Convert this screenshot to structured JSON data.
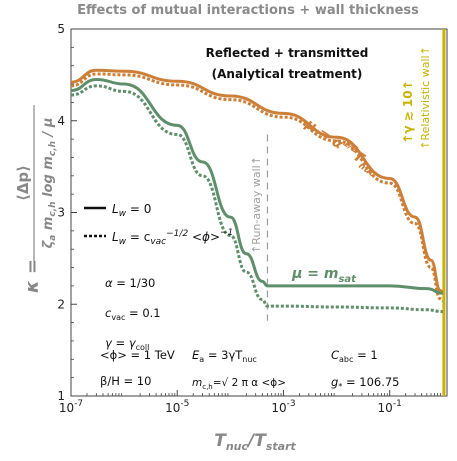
{
  "chart_data": {
    "type": "line",
    "title": "Effects of mutual interactions + wall thickness",
    "xlabel": "T_nuc/T_start",
    "ylabel": "κ = ⟨Δp⟩ / (ζ_a m_c,h log m_c,h / μ)",
    "x_scale": "log",
    "xlim": [
      1e-07,
      1.2
    ],
    "ylim": [
      1,
      5
    ],
    "x_ticks": [
      1e-07,
      1e-05,
      0.001,
      0.1
    ],
    "y_ticks": [
      1,
      2,
      3,
      4,
      5
    ],
    "grid": false,
    "colors": {
      "orange": "#cd7f38",
      "green": "#5f8f6a",
      "wall": "#c9b200",
      "runaway": "#a0a0a0"
    },
    "series": [
      {
        "name": "μ = α^(1/2) T_nuc",
        "style": "solid",
        "color": "#cd7f38",
        "x": [
          1e-07,
          3e-07,
          1e-06,
          1e-05,
          0.0001,
          0.001,
          0.01,
          0.1,
          0.3,
          0.6,
          0.9,
          1.0
        ],
        "y": [
          4.42,
          4.55,
          4.54,
          4.43,
          4.27,
          4.08,
          3.82,
          3.37,
          2.95,
          2.48,
          2.15,
          2.13
        ]
      },
      {
        "name": "μ = α^(1/2) T_nuc",
        "style": "dashed",
        "color": "#cd7f38",
        "x": [
          1e-07,
          3e-07,
          1e-06,
          1e-05,
          0.0001,
          0.001,
          0.01,
          0.1,
          0.3,
          0.6,
          0.9,
          1.0
        ],
        "y": [
          4.38,
          4.51,
          4.5,
          4.39,
          4.23,
          4.04,
          3.78,
          3.32,
          2.88,
          2.4,
          2.06,
          2.04
        ]
      },
      {
        "name": "μ = m_sat",
        "style": "solid",
        "color": "#5f8f6a",
        "x": [
          1e-07,
          3e-07,
          1e-06,
          1e-05,
          3e-05,
          0.0001,
          0.0002,
          0.0004,
          0.0005,
          0.001,
          0.01,
          0.1,
          0.5,
          1.0
        ],
        "y": [
          4.33,
          4.45,
          4.4,
          3.95,
          3.55,
          2.95,
          2.55,
          2.25,
          2.2,
          2.2,
          2.2,
          2.2,
          2.17,
          2.12
        ]
      },
      {
        "name": "μ = m_sat",
        "style": "dashed",
        "color": "#5f8f6a",
        "x": [
          1e-07,
          3e-07,
          1e-06,
          1e-05,
          3e-05,
          0.0001,
          0.0002,
          0.0004,
          0.0005,
          0.001,
          0.01,
          0.1,
          0.5,
          1.0
        ],
        "y": [
          4.28,
          4.38,
          4.32,
          3.85,
          3.4,
          2.75,
          2.35,
          2.05,
          1.98,
          1.98,
          1.97,
          1.96,
          1.94,
          1.92
        ]
      }
    ],
    "runaway_wall_x": 0.0005,
    "relativistic_wall_x": 1.05,
    "annotations": {
      "reflected": "Reflected + transmitted",
      "analytical": "(Analytical treatment)",
      "runaway": "↑Run-away wall↑",
      "gamma_cond": "↑γ ≳ 10↑",
      "relativistic": "↑Relativistic wall↑",
      "mu_alpha": "μ = α^(1/2) T_nuc",
      "mu_sat": "μ = m_sat",
      "legend_solid": "L_w = 0",
      "legend_dashed": "L_w = c_vac^(-1/2) ⟨ϕ⟩^(-1)",
      "alpha": "α = 1/30",
      "cvac": "c_vac = 0.1",
      "gamma": "γ = γ_coll",
      "phi": "⟨ϕ⟩ = 1 TeV",
      "ea": "E_a = 3γT_nuc",
      "cabc": "C_abc = 1",
      "beta": "β/H = 10",
      "mch": "m_c,h = √(2πα) ⟨ϕ⟩",
      "gstar": "g* = 106.75"
    }
  }
}
